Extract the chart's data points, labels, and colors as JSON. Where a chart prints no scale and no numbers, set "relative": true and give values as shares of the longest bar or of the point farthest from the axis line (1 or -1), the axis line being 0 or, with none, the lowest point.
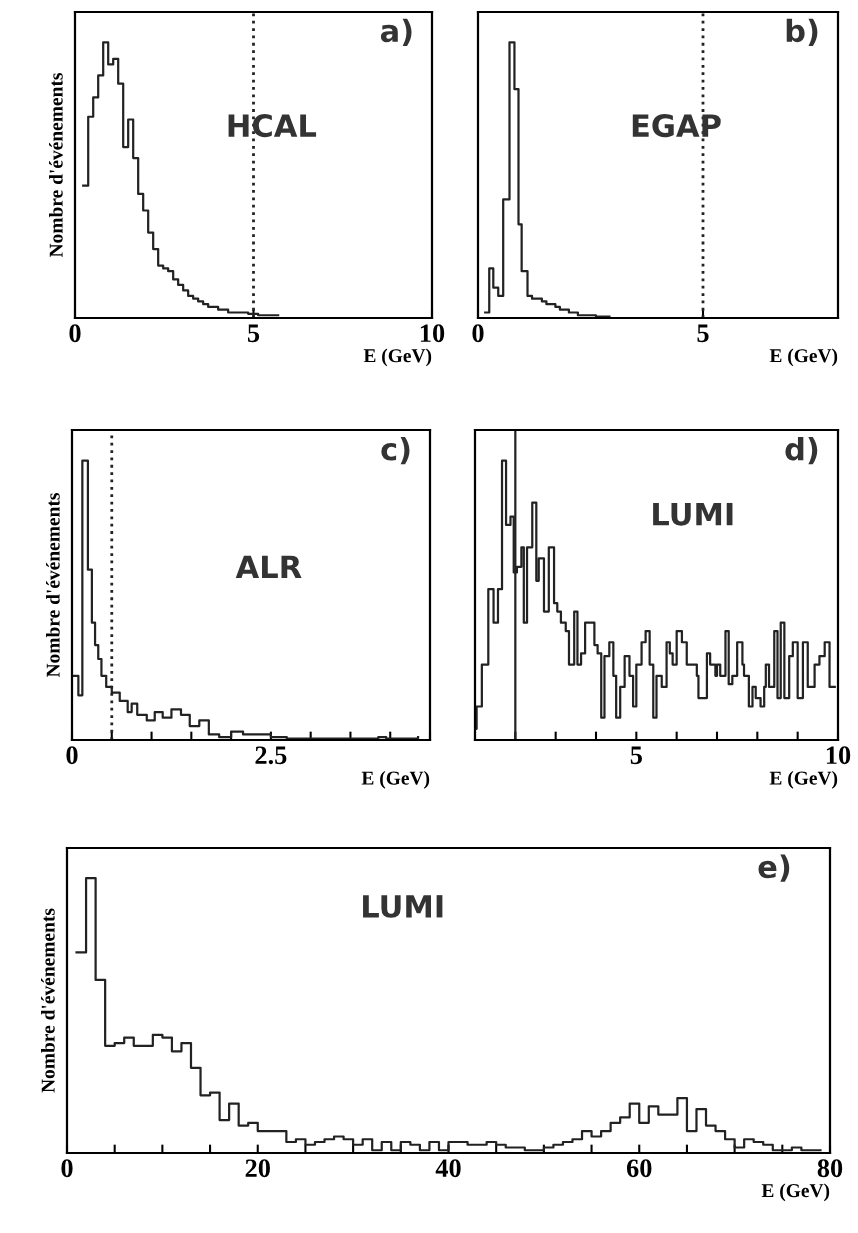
{
  "chart_data": [
    {
      "type": "step",
      "relative": true,
      "xlabel": "E (GeV)",
      "ylabel": "Nombre d'événements",
      "annotations": [
        "a)",
        "HCAL"
      ],
      "xlim": [
        0,
        10
      ],
      "xticks": [
        0,
        5,
        10
      ],
      "tick_labels": "x",
      "color": "#222222",
      "ref_lines": [
        {
          "axis": "x",
          "value": 5,
          "line_style": "dotted"
        }
      ],
      "x": [
        0.23,
        0.37,
        0.51,
        0.65,
        0.79,
        0.93,
        1.07,
        1.21,
        1.35,
        1.49,
        1.63,
        1.77,
        1.91,
        2.05,
        2.19,
        2.33,
        2.47,
        2.61,
        2.75,
        2.89,
        3.03,
        3.17,
        3.31,
        3.45,
        3.59,
        3.73,
        3.87,
        4.01,
        4.15,
        4.29,
        4.43,
        4.57,
        4.71,
        4.85,
        4.99,
        5.13,
        5.27,
        5.41,
        5.55,
        5.69
      ],
      "values": [
        0.48,
        0.73,
        0.8,
        0.88,
        1.0,
        0.92,
        0.94,
        0.85,
        0.62,
        0.72,
        0.58,
        0.45,
        0.39,
        0.31,
        0.25,
        0.19,
        0.18,
        0.17,
        0.14,
        0.12,
        0.1,
        0.08,
        0.07,
        0.06,
        0.05,
        0.04,
        0.04,
        0.03,
        0.03,
        0.02,
        0.02,
        0.02,
        0.02,
        0.015,
        0.015,
        0.01,
        0.01,
        0.01,
        0.01,
        0.01
      ]
    },
    {
      "type": "step",
      "relative": true,
      "xlabel": "E (GeV)",
      "annotations": [
        "b)",
        "EGAP"
      ],
      "xlim": [
        0,
        8
      ],
      "xticks": [
        0,
        5
      ],
      "tick_labels": "x",
      "color": "#222222",
      "ref_lines": [
        {
          "axis": "x",
          "value": 5,
          "line_style": "dotted"
        }
      ],
      "x": [
        0.16,
        0.25,
        0.34,
        0.45,
        0.56,
        0.7,
        0.81,
        0.9,
        0.97,
        1.1,
        1.2,
        1.3,
        1.42,
        1.52,
        1.62,
        1.72,
        1.82,
        1.92,
        2.02,
        2.12,
        2.22,
        2.32,
        2.42,
        2.52,
        2.62,
        2.72,
        2.82,
        2.92
      ],
      "values": [
        0.02,
        0.18,
        0.11,
        0.08,
        0.43,
        1.0,
        0.83,
        0.34,
        0.17,
        0.08,
        0.07,
        0.07,
        0.06,
        0.05,
        0.05,
        0.04,
        0.03,
        0.03,
        0.02,
        0.02,
        0.01,
        0.01,
        0.01,
        0.01,
        0.005,
        0.005,
        0.005,
        0.005
      ]
    },
    {
      "type": "step",
      "relative": true,
      "xlabel": "E (GeV)",
      "ylabel": "Nombre d'événements",
      "annotations": [
        "c)",
        "ALR"
      ],
      "xlim": [
        0,
        4.5
      ],
      "xticks": [
        0,
        {
          "value": 0.5,
          "label": null
        },
        {
          "value": 1,
          "label": null
        },
        {
          "value": 1.5,
          "label": null
        },
        {
          "value": 2,
          "label": null
        },
        2.5,
        {
          "value": 3,
          "label": null
        },
        {
          "value": 3.5,
          "label": null
        },
        {
          "value": 4,
          "label": null
        },
        {
          "value": 4.5,
          "label": null
        }
      ],
      "tick_labels": "x",
      "color": "#222222",
      "ref_lines": [
        {
          "axis": "x",
          "value": 0.5,
          "line_style": "dotted"
        }
      ],
      "x": [
        0.02,
        0.08,
        0.13,
        0.2,
        0.25,
        0.29,
        0.33,
        0.37,
        0.43,
        0.5,
        0.6,
        0.7,
        0.75,
        0.82,
        0.94,
        1.04,
        1.14,
        1.25,
        1.37,
        1.48,
        1.6,
        1.72,
        1.85,
        2.0,
        2.15,
        2.3,
        2.5,
        2.7,
        3.0,
        3.5,
        3.85,
        3.95,
        4.35
      ],
      "values": [
        0.23,
        0.16,
        1.0,
        0.61,
        0.42,
        0.34,
        0.29,
        0.23,
        0.19,
        0.17,
        0.14,
        0.1,
        0.13,
        0.09,
        0.07,
        0.1,
        0.08,
        0.11,
        0.09,
        0.05,
        0.07,
        0.02,
        0.01,
        0.03,
        0.02,
        0.02,
        0.01,
        0.005,
        0.005,
        0.005,
        0.01,
        0.005,
        0.01
      ]
    },
    {
      "type": "step",
      "relative": true,
      "xlabel": "E (GeV)",
      "annotations": [
        "d)",
        "LUMI"
      ],
      "xlim": [
        1,
        10
      ],
      "xticks": [
        {
          "value": 1,
          "label": null
        },
        {
          "value": 2,
          "label": null
        },
        {
          "value": 3,
          "label": null
        },
        {
          "value": 4,
          "label": null
        },
        5,
        {
          "value": 6,
          "label": null
        },
        {
          "value": 7,
          "label": null
        },
        {
          "value": 8,
          "label": null
        },
        {
          "value": 9,
          "label": null
        },
        10
      ],
      "tick_labels": "x",
      "color": "#222222",
      "ref_lines": [
        {
          "axis": "x",
          "value": 2,
          "line_style": "solid"
        }
      ],
      "x": [
        1.0,
        1.04,
        1.17,
        1.33,
        1.46,
        1.57,
        1.67,
        1.77,
        1.88,
        1.96,
        2.04,
        2.15,
        2.21,
        2.29,
        2.42,
        2.52,
        2.58,
        2.71,
        2.83,
        2.96,
        3.04,
        3.13,
        3.25,
        3.33,
        3.46,
        3.54,
        3.63,
        3.73,
        3.96,
        4.04,
        4.13,
        4.21,
        4.33,
        4.43,
        4.5,
        4.6,
        4.71,
        4.83,
        4.92,
        5.0,
        5.13,
        5.23,
        5.33,
        5.42,
        5.5,
        5.63,
        5.75,
        5.83,
        5.9,
        6.0,
        6.13,
        6.25,
        6.5,
        6.54,
        6.75,
        6.83,
        6.96,
        7.0,
        7.08,
        7.21,
        7.29,
        7.38,
        7.5,
        7.63,
        7.67,
        7.79,
        7.88,
        7.96,
        8.08,
        8.17,
        8.21,
        8.29,
        8.42,
        8.5,
        8.58,
        8.67,
        8.79,
        8.88,
        9.0,
        9.13,
        9.25,
        9.42,
        9.54,
        9.67,
        9.79,
        9.92
      ],
      "values": [
        0.04,
        0.12,
        0.27,
        0.54,
        0.42,
        0.54,
        1.0,
        0.77,
        0.8,
        0.6,
        0.62,
        0.69,
        0.42,
        0.69,
        0.85,
        0.57,
        0.65,
        0.46,
        0.69,
        0.49,
        0.46,
        0.42,
        0.39,
        0.27,
        0.46,
        0.27,
        0.31,
        0.42,
        0.34,
        0.31,
        0.08,
        0.3,
        0.35,
        0.23,
        0.08,
        0.19,
        0.3,
        0.23,
        0.12,
        0.27,
        0.35,
        0.39,
        0.27,
        0.08,
        0.23,
        0.19,
        0.35,
        0.31,
        0.27,
        0.39,
        0.35,
        0.27,
        0.23,
        0.15,
        0.31,
        0.27,
        0.23,
        0.27,
        0.23,
        0.39,
        0.2,
        0.23,
        0.35,
        0.27,
        0.23,
        0.12,
        0.19,
        0.15,
        0.12,
        0.19,
        0.27,
        0.19,
        0.39,
        0.15,
        0.42,
        0.15,
        0.3,
        0.35,
        0.15,
        0.35,
        0.19,
        0.27,
        0.3,
        0.35,
        0.19,
        0.19
      ]
    },
    {
      "type": "step",
      "relative": true,
      "xlabel": "E (GeV)",
      "ylabel": "Nombre d'événements",
      "annotations": [
        "e)",
        "LUMI"
      ],
      "xlim": [
        0,
        80
      ],
      "xticks": [
        0,
        {
          "value": 5,
          "label": null
        },
        {
          "value": 10,
          "label": null
        },
        {
          "value": 15,
          "label": null
        },
        20,
        {
          "value": 25,
          "label": null
        },
        {
          "value": 30,
          "label": null
        },
        {
          "value": 35,
          "label": null
        },
        40,
        {
          "value": 45,
          "label": null
        },
        {
          "value": 50,
          "label": null
        },
        {
          "value": 55,
          "label": null
        },
        60,
        {
          "value": 65,
          "label": null
        },
        {
          "value": 70,
          "label": null
        },
        {
          "value": 75,
          "label": null
        },
        80
      ],
      "tick_labels": "x",
      "color": "#222222",
      "x": [
        1,
        2,
        3,
        4,
        5,
        6,
        7,
        8,
        9,
        10,
        11,
        12,
        13,
        14,
        15,
        16,
        17,
        18,
        19,
        20,
        21,
        22,
        23,
        24,
        25,
        26,
        27,
        28,
        29,
        30,
        31,
        32,
        33,
        34,
        35,
        36,
        37,
        38,
        39,
        40,
        41,
        42,
        43,
        44,
        45,
        46,
        47,
        48,
        49,
        50,
        51,
        52,
        53,
        54,
        55,
        56,
        57,
        58,
        59,
        60,
        61,
        62,
        63,
        64,
        65,
        66,
        67,
        68,
        69,
        70,
        71,
        72,
        73,
        74,
        75,
        76,
        77,
        78,
        79
      ],
      "values": [
        0.73,
        1.0,
        0.63,
        0.39,
        0.4,
        0.42,
        0.39,
        0.39,
        0.43,
        0.42,
        0.37,
        0.4,
        0.31,
        0.21,
        0.22,
        0.12,
        0.18,
        0.1,
        0.11,
        0.08,
        0.08,
        0.08,
        0.04,
        0.05,
        0.03,
        0.04,
        0.05,
        0.06,
        0.05,
        0.03,
        0.05,
        0.01,
        0.04,
        0.01,
        0.04,
        0.03,
        0.01,
        0.04,
        0.01,
        0.04,
        0.04,
        0.03,
        0.03,
        0.04,
        0.03,
        0.02,
        0.02,
        0.01,
        0.01,
        0.02,
        0.03,
        0.04,
        0.05,
        0.08,
        0.06,
        0.08,
        0.11,
        0.13,
        0.18,
        0.11,
        0.17,
        0.14,
        0.14,
        0.2,
        0.08,
        0.16,
        0.1,
        0.08,
        0.05,
        0.02,
        0.05,
        0.04,
        0.03,
        0.01,
        0.01,
        0.02,
        0.01,
        0.01,
        0.01
      ]
    }
  ]
}
